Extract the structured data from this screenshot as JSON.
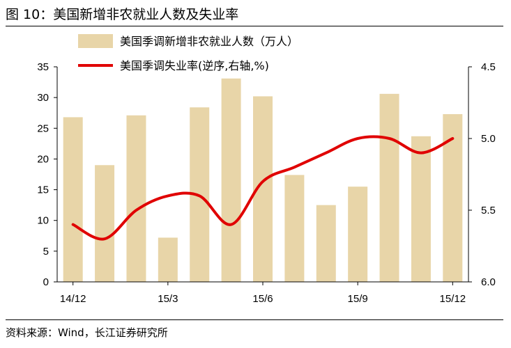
{
  "title": "图 10：美国新增非农就业人数及失业率",
  "source": "资料来源：Wind，长江证券研究所",
  "colors": {
    "bar": "#E8D5A8",
    "line": "#E00000"
  },
  "chart_data": {
    "type": "bar+line",
    "categories": [
      "14/12",
      "15/1",
      "15/2",
      "15/3",
      "15/4",
      "15/5",
      "15/6",
      "15/7",
      "15/8",
      "15/9",
      "15/10",
      "15/11",
      "15/12"
    ],
    "x_tick_labels": [
      "14/12",
      "15/3",
      "15/6",
      "15/9",
      "15/12"
    ],
    "series": [
      {
        "name": "美国季调新增非农就业人数（万人）",
        "type": "bar",
        "axis": "left",
        "values": [
          26.8,
          19.0,
          27.1,
          7.2,
          28.4,
          33.1,
          30.2,
          17.4,
          12.5,
          15.5,
          30.6,
          23.7,
          27.3
        ]
      },
      {
        "name": "美国季调失业率(逆序,右轴,%)",
        "type": "line",
        "axis": "right",
        "values": [
          5.6,
          5.7,
          5.5,
          5.4,
          5.4,
          5.6,
          5.3,
          5.2,
          5.1,
          5.0,
          5.0,
          5.1,
          5.0
        ]
      }
    ],
    "left_axis": {
      "min": 0,
      "max": 35,
      "ticks": [
        0,
        5,
        10,
        15,
        20,
        25,
        30,
        35
      ]
    },
    "right_axis": {
      "min": 4.5,
      "max": 6.0,
      "inverted": true,
      "ticks": [
        "4.5",
        "5.0",
        "5.5",
        "6.0"
      ]
    },
    "grid": false,
    "legend": "top"
  }
}
